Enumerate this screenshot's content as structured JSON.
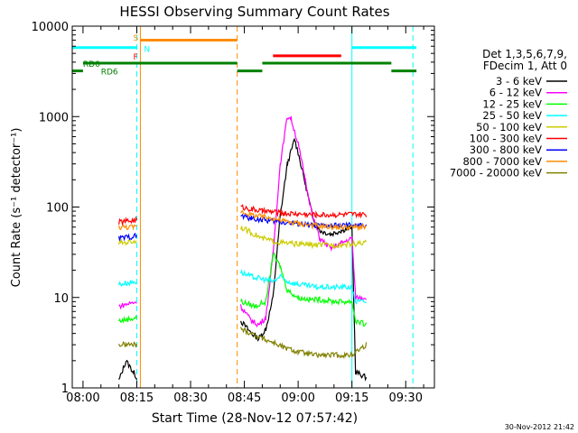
{
  "chart_data": {
    "type": "line",
    "title": "HESSI Observing Summary Count Rates",
    "xlabel": "Start Time (28-Nov-12 07:57:42)",
    "ylabel": "Count Rate (s⁻¹ detector⁻¹)",
    "xlim": [
      "07:57",
      "09:38"
    ],
    "ylim": [
      1,
      10000
    ],
    "yscale": "log",
    "x_ticks": [
      "08:00",
      "08:15",
      "08:30",
      "08:45",
      "09:00",
      "09:15",
      "09:30"
    ],
    "y_ticks": [
      "1",
      "10",
      "100",
      "1000",
      "10000"
    ],
    "legend": {
      "placement": "right",
      "header": [
        "Det 1,3,5,6,7,9,",
        "FDecim 1, Att 0"
      ]
    },
    "series": [
      {
        "name": "3 - 6 keV",
        "color": "#000000",
        "points": [
          [
            "08:10",
            1.2
          ],
          [
            "08:12",
            2
          ],
          [
            "08:14",
            1.5
          ],
          [
            "08:15",
            1.3
          ],
          [
            "08:44",
            5.5
          ],
          [
            "08:47",
            4
          ],
          [
            "08:49",
            3.5
          ],
          [
            "08:51",
            4.5
          ],
          [
            "08:53",
            10
          ],
          [
            "08:55",
            80
          ],
          [
            "08:57",
            300
          ],
          [
            "08:59",
            560
          ],
          [
            "09:00",
            400
          ],
          [
            "09:02",
            180
          ],
          [
            "09:04",
            80
          ],
          [
            "09:06",
            55
          ],
          [
            "09:09",
            50
          ],
          [
            "09:12",
            55
          ],
          [
            "09:15",
            60
          ],
          [
            "09:16",
            1.5
          ],
          [
            "09:19",
            1.3
          ]
        ]
      },
      {
        "name": "6 - 12 keV",
        "color": "#ff00ff",
        "points": [
          [
            "08:10",
            8
          ],
          [
            "08:15",
            9
          ],
          [
            "08:44",
            8
          ],
          [
            "08:47",
            5.5
          ],
          [
            "08:49",
            5
          ],
          [
            "08:51",
            6
          ],
          [
            "08:53",
            30
          ],
          [
            "08:55",
            300
          ],
          [
            "08:57",
            1000
          ],
          [
            "08:58",
            950
          ],
          [
            "09:00",
            500
          ],
          [
            "09:02",
            200
          ],
          [
            "09:04",
            80
          ],
          [
            "09:06",
            45
          ],
          [
            "09:09",
            35
          ],
          [
            "09:12",
            40
          ],
          [
            "09:15",
            45
          ],
          [
            "09:16",
            10
          ],
          [
            "09:19",
            10
          ]
        ]
      },
      {
        "name": "12 - 25 keV",
        "color": "#00ff00",
        "points": [
          [
            "08:10",
            5.5
          ],
          [
            "08:15",
            6
          ],
          [
            "08:44",
            9
          ],
          [
            "08:48",
            8
          ],
          [
            "08:51",
            9
          ],
          [
            "08:53",
            30
          ],
          [
            "08:55",
            22
          ],
          [
            "08:57",
            12
          ],
          [
            "09:00",
            10
          ],
          [
            "09:03",
            9.5
          ],
          [
            "09:06",
            9.5
          ],
          [
            "09:10",
            9
          ],
          [
            "09:15",
            9
          ],
          [
            "09:16",
            5.5
          ],
          [
            "09:19",
            5
          ]
        ]
      },
      {
        "name": "25 - 50 keV",
        "color": "#00ffff",
        "points": [
          [
            "08:10",
            14
          ],
          [
            "08:15",
            15
          ],
          [
            "08:44",
            19
          ],
          [
            "08:47",
            17
          ],
          [
            "08:50",
            16
          ],
          [
            "08:53",
            15
          ],
          [
            "08:55",
            17
          ],
          [
            "08:57",
            15
          ],
          [
            "09:00",
            14
          ],
          [
            "09:05",
            13
          ],
          [
            "09:10",
            13
          ],
          [
            "09:15",
            13
          ],
          [
            "09:16",
            9
          ],
          [
            "09:19",
            9
          ]
        ]
      },
      {
        "name": "50 - 100 keV",
        "color": "#cccc00",
        "points": [
          [
            "08:10",
            40
          ],
          [
            "08:15",
            42
          ],
          [
            "08:44",
            60
          ],
          [
            "08:47",
            52
          ],
          [
            "08:50",
            45
          ],
          [
            "08:53",
            42
          ],
          [
            "08:56",
            40
          ],
          [
            "09:00",
            39
          ],
          [
            "09:05",
            38
          ],
          [
            "09:10",
            38
          ],
          [
            "09:15",
            39
          ],
          [
            "09:19",
            40
          ]
        ]
      },
      {
        "name": "100 - 300 keV",
        "color": "#ff0000",
        "points": [
          [
            "08:10",
            68
          ],
          [
            "08:15",
            72
          ],
          [
            "08:44",
            100
          ],
          [
            "08:47",
            95
          ],
          [
            "08:50",
            90
          ],
          [
            "08:53",
            88
          ],
          [
            "08:56",
            85
          ],
          [
            "09:00",
            84
          ],
          [
            "09:05",
            82
          ],
          [
            "09:10",
            82
          ],
          [
            "09:15",
            83
          ],
          [
            "09:19",
            82
          ]
        ]
      },
      {
        "name": "300 - 800 keV",
        "color": "#0000ff",
        "points": [
          [
            "08:10",
            45
          ],
          [
            "08:15",
            48
          ],
          [
            "08:44",
            80
          ],
          [
            "08:47",
            75
          ],
          [
            "08:50",
            72
          ],
          [
            "08:53",
            70
          ],
          [
            "08:56",
            68
          ],
          [
            "09:00",
            65
          ],
          [
            "09:05",
            62
          ],
          [
            "09:10",
            62
          ],
          [
            "09:15",
            63
          ],
          [
            "09:16",
            62
          ],
          [
            "09:19",
            62
          ]
        ]
      },
      {
        "name": "800 - 7000 keV",
        "color": "#ff8c00",
        "points": [
          [
            "08:10",
            60
          ],
          [
            "08:15",
            60
          ],
          [
            "08:44",
            90
          ],
          [
            "08:47",
            82
          ],
          [
            "08:50",
            78
          ],
          [
            "08:53",
            75
          ],
          [
            "08:56",
            70
          ],
          [
            "09:00",
            66
          ],
          [
            "09:05",
            62
          ],
          [
            "09:10",
            60
          ],
          [
            "09:15",
            60
          ],
          [
            "09:19",
            60
          ]
        ]
      },
      {
        "name": "7000 - 20000 keV",
        "color": "#808000",
        "points": [
          [
            "08:10",
            3
          ],
          [
            "08:15",
            3
          ],
          [
            "08:44",
            4.5
          ],
          [
            "08:47",
            4
          ],
          [
            "08:50",
            3.5
          ],
          [
            "08:53",
            3.2
          ],
          [
            "08:56",
            2.8
          ],
          [
            "09:00",
            2.5
          ],
          [
            "09:05",
            2.3
          ],
          [
            "09:10",
            2.3
          ],
          [
            "09:15",
            2.3
          ],
          [
            "09:16",
            2.5
          ],
          [
            "09:19",
            3
          ]
        ]
      }
    ],
    "flag_bars": [
      {
        "color": "#00ffff",
        "level": 5800,
        "segments": [
          [
            "07:57",
            "08:15"
          ],
          [
            "09:15",
            "09:33"
          ]
        ]
      },
      {
        "color": "#ff8c00",
        "level": 7000,
        "segments": [
          [
            "08:16",
            "08:43"
          ]
        ]
      },
      {
        "color": "#ff0000",
        "level": 4700,
        "segments": [
          [
            "08:53",
            "09:12"
          ]
        ]
      },
      {
        "color": "#008000",
        "level": 3900,
        "segments": [
          [
            "08:00",
            "08:43"
          ],
          [
            "08:50",
            "09:26"
          ]
        ]
      },
      {
        "color": "#008000",
        "level": 3200,
        "segments": [
          [
            "07:57",
            "08:00"
          ],
          [
            "08:43",
            "08:50"
          ],
          [
            "09:26",
            "09:33"
          ]
        ]
      }
    ],
    "flag_labels": [
      {
        "text": "S",
        "color": "#ff8c00",
        "x": "08:14",
        "level": 7600
      },
      {
        "text": "N",
        "color": "#00ffff",
        "x": "08:17",
        "level": 5700
      },
      {
        "text": "F",
        "color": "#ff0000",
        "x": "08:14",
        "level": 4700
      },
      {
        "text": "RD0",
        "color": "#008000",
        "x": "08:00",
        "level": 3900
      },
      {
        "text": "RD6",
        "color": "#008000",
        "x": "08:05",
        "level": 3200
      }
    ],
    "vertical_markers": [
      {
        "x": "07:57",
        "color": "#00ffff",
        "style": "solid"
      },
      {
        "x": "08:15",
        "color": "#00ffff",
        "style": "dashed"
      },
      {
        "x": "08:16",
        "color": "#ff8c00",
        "style": "solid"
      },
      {
        "x": "08:43",
        "color": "#ff8c00",
        "style": "dashed"
      },
      {
        "x": "09:15",
        "color": "#00ffff",
        "style": "solid"
      },
      {
        "x": "09:32",
        "color": "#00ffff",
        "style": "dashed"
      }
    ],
    "footer_timestamp": "30-Nov-2012 21:42"
  }
}
